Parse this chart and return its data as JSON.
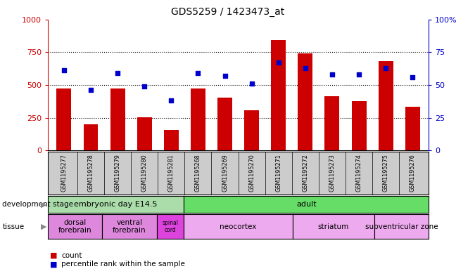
{
  "title": "GDS5259 / 1423473_at",
  "samples": [
    "GSM1195277",
    "GSM1195278",
    "GSM1195279",
    "GSM1195280",
    "GSM1195281",
    "GSM1195268",
    "GSM1195269",
    "GSM1195270",
    "GSM1195271",
    "GSM1195272",
    "GSM1195273",
    "GSM1195274",
    "GSM1195275",
    "GSM1195276"
  ],
  "counts": [
    470,
    200,
    475,
    255,
    155,
    470,
    405,
    305,
    840,
    740,
    415,
    375,
    680,
    335
  ],
  "percentiles": [
    61,
    46,
    59,
    49,
    38,
    59,
    57,
    51,
    67,
    63,
    58,
    58,
    63,
    56
  ],
  "bar_color": "#cc0000",
  "dot_color": "#0000cc",
  "ylim_left": [
    0,
    1000
  ],
  "ylim_right": [
    0,
    100
  ],
  "yticks_left": [
    0,
    250,
    500,
    750,
    1000
  ],
  "yticks_right": [
    0,
    25,
    50,
    75,
    100
  ],
  "dev_stage_groups": [
    {
      "label": "embryonic day E14.5",
      "start": 0,
      "end": 5,
      "color": "#aaddaa"
    },
    {
      "label": "adult",
      "start": 5,
      "end": 14,
      "color": "#66dd66"
    }
  ],
  "tissue_groups": [
    {
      "label": "dorsal\nforebrain",
      "start": 0,
      "end": 2,
      "color": "#dd88dd"
    },
    {
      "label": "ventral\nforebrain",
      "start": 2,
      "end": 4,
      "color": "#dd88dd"
    },
    {
      "label": "spinal\ncord",
      "start": 4,
      "end": 5,
      "color": "#dd44dd"
    },
    {
      "label": "neocortex",
      "start": 5,
      "end": 9,
      "color": "#eeaaee"
    },
    {
      "label": "striatum",
      "start": 9,
      "end": 12,
      "color": "#eeaaee"
    },
    {
      "label": "subventricular zone",
      "start": 12,
      "end": 14,
      "color": "#eeaaee"
    }
  ],
  "sample_bg_color": "#cccccc",
  "background_color": "#ffffff",
  "plot_bg_color": "#ffffff",
  "left_axis_color": "#cc0000",
  "right_axis_color": "#0000cc",
  "legend_count_color": "#cc0000",
  "legend_pct_color": "#0000cc"
}
